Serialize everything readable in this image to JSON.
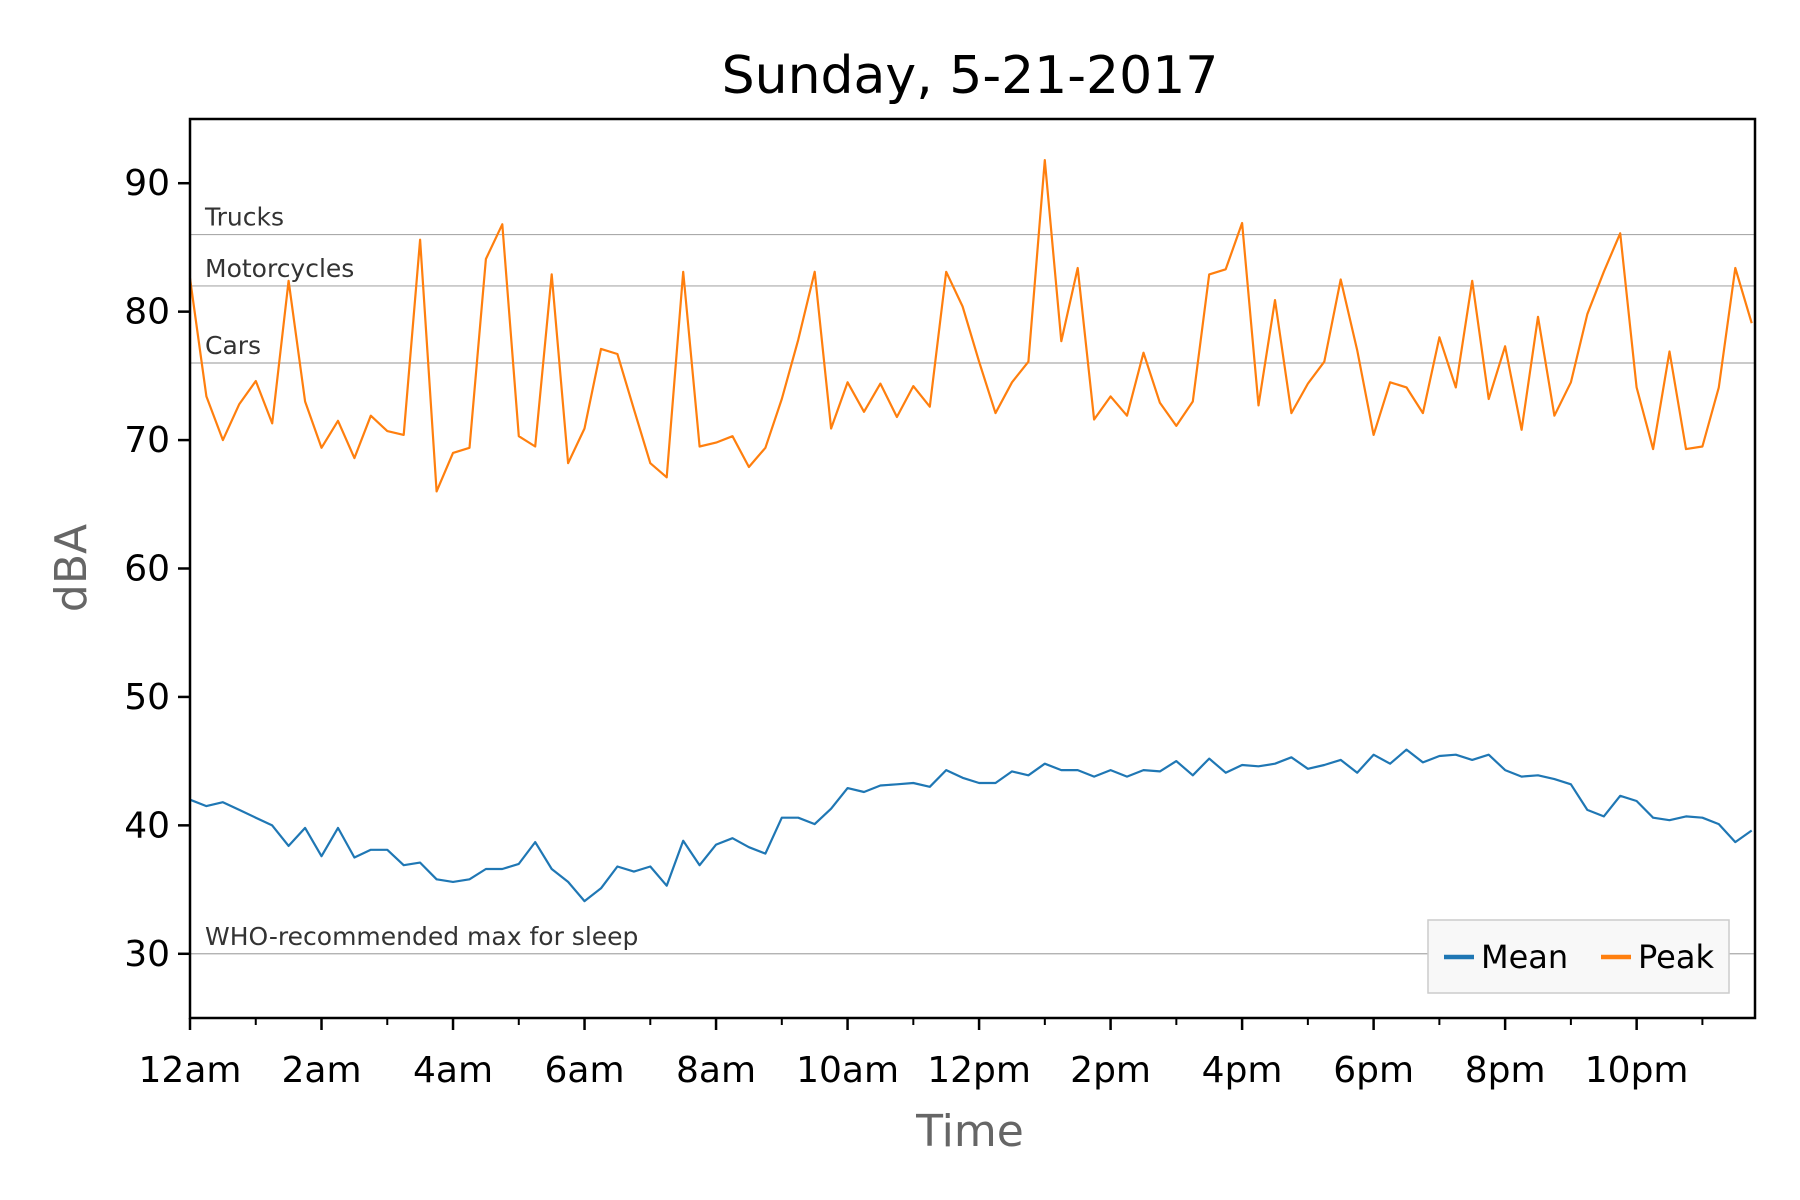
{
  "chart_data": {
    "type": "line",
    "title": "Sunday, 5-21-2017",
    "xlabel": "Time",
    "ylabel": "dBA",
    "xlim": [
      0,
      23.8
    ],
    "ylim": [
      25,
      95
    ],
    "x_ticks": [
      {
        "value": 0,
        "label": "12am"
      },
      {
        "value": 2,
        "label": "2am"
      },
      {
        "value": 4,
        "label": "4am"
      },
      {
        "value": 6,
        "label": "6am"
      },
      {
        "value": 8,
        "label": "8am"
      },
      {
        "value": 10,
        "label": "10am"
      },
      {
        "value": 12,
        "label": "12pm"
      },
      {
        "value": 14,
        "label": "2pm"
      },
      {
        "value": 16,
        "label": "4pm"
      },
      {
        "value": 18,
        "label": "6pm"
      },
      {
        "value": 20,
        "label": "8pm"
      },
      {
        "value": 22,
        "label": "10pm"
      }
    ],
    "y_ticks": [
      30,
      40,
      50,
      60,
      70,
      80,
      90
    ],
    "reference_lines": [
      {
        "value": 86,
        "label": "Trucks"
      },
      {
        "value": 82,
        "label": "Motorcycles"
      },
      {
        "value": 76,
        "label": "Cars"
      },
      {
        "value": 30,
        "label": "WHO-recommended max for sleep"
      }
    ],
    "legend_position": "lower right",
    "grid": false,
    "series": [
      {
        "name": "Mean",
        "color": "#1f77b4",
        "x": [
          0,
          0.25,
          0.5,
          0.75,
          1,
          1.25,
          1.5,
          1.75,
          2,
          2.25,
          2.5,
          2.75,
          3,
          3.25,
          3.5,
          3.75,
          4,
          4.25,
          4.5,
          4.75,
          5,
          5.25,
          5.5,
          5.75,
          6,
          6.25,
          6.5,
          6.75,
          7,
          7.25,
          7.5,
          7.75,
          8,
          8.25,
          8.5,
          8.75,
          9,
          9.25,
          9.5,
          9.75,
          10,
          10.25,
          10.5,
          10.75,
          11,
          11.25,
          11.5,
          11.75,
          12,
          12.25,
          12.5,
          12.75,
          13,
          13.25,
          13.5,
          13.75,
          14,
          14.25,
          14.5,
          14.75,
          15,
          15.25,
          15.5,
          15.75,
          16,
          16.25,
          16.5,
          16.75,
          17,
          17.25,
          17.5,
          17.75,
          18,
          18.25,
          18.5,
          18.75,
          19,
          19.25,
          19.5,
          19.75,
          20,
          20.25,
          20.5,
          20.75,
          21,
          21.25,
          21.5,
          21.75,
          22,
          22.25,
          22.5,
          22.75,
          23,
          23.25,
          23.5,
          23.75
        ],
        "y": [
          42,
          41.5,
          41.8,
          41.2,
          40.6,
          40,
          38.4,
          39.8,
          37.6,
          39.8,
          37.5,
          38.1,
          38.1,
          36.9,
          37.1,
          35.8,
          35.6,
          35.8,
          36.6,
          36.6,
          37,
          38.7,
          36.6,
          35.6,
          34.1,
          35.1,
          36.8,
          36.4,
          36.8,
          35.3,
          38.8,
          36.9,
          38.5,
          39,
          38.3,
          37.8,
          40.6,
          40.6,
          40.1,
          41.3,
          42.9,
          42.6,
          43.1,
          43.2,
          43.3,
          43,
          44.3,
          43.7,
          43.3,
          43.3,
          44.2,
          43.9,
          44.8,
          44.3,
          44.3,
          43.8,
          44.3,
          43.8,
          44.3,
          44.2,
          45,
          43.9,
          45.2,
          44.1,
          44.7,
          44.6,
          44.8,
          45.3,
          44.4,
          44.7,
          45.1,
          44.1,
          45.5,
          44.8,
          45.9,
          44.9,
          45.4,
          45.5,
          45.1,
          45.5,
          44.3,
          43.8,
          43.9,
          43.6,
          43.2,
          41.2,
          40.7,
          42.3,
          41.9,
          40.6,
          40.4,
          40.7,
          40.6,
          40.1,
          38.7,
          39.6
        ]
      },
      {
        "name": "Peak",
        "color": "#ff7f0e",
        "x": [
          0,
          0.25,
          0.5,
          0.75,
          1,
          1.25,
          1.5,
          1.75,
          2,
          2.25,
          2.5,
          2.75,
          3,
          3.25,
          3.5,
          3.75,
          4,
          4.25,
          4.5,
          4.75,
          5,
          5.25,
          5.5,
          5.75,
          6,
          6.25,
          6.5,
          6.75,
          7,
          7.25,
          7.5,
          7.75,
          8,
          8.25,
          8.5,
          8.75,
          9,
          9.25,
          9.5,
          9.75,
          10,
          10.25,
          10.5,
          10.75,
          11,
          11.25,
          11.5,
          11.75,
          12,
          12.25,
          12.5,
          12.75,
          13,
          13.25,
          13.5,
          13.75,
          14,
          14.25,
          14.5,
          14.75,
          15,
          15.25,
          15.5,
          15.75,
          16,
          16.25,
          16.5,
          16.75,
          17,
          17.25,
          17.5,
          17.75,
          18,
          18.25,
          18.5,
          18.75,
          19,
          19.25,
          19.5,
          19.75,
          20,
          20.25,
          20.5,
          20.75,
          21,
          21.25,
          21.5,
          21.75,
          22,
          22.25,
          22.5,
          22.75,
          23,
          23.25,
          23.5,
          23.75
        ],
        "y": [
          82.6,
          73.4,
          70,
          72.8,
          74.6,
          71.3,
          82.4,
          73,
          69.4,
          71.5,
          68.6,
          71.9,
          70.7,
          70.4,
          85.6,
          66,
          69,
          69.4,
          84.1,
          86.8,
          70.3,
          69.5,
          82.9,
          68.2,
          70.9,
          77.1,
          76.7,
          72.4,
          68.2,
          67.1,
          83.1,
          69.5,
          69.8,
          70.3,
          67.9,
          69.4,
          73.2,
          77.8,
          83.1,
          70.9,
          74.5,
          72.2,
          74.4,
          71.8,
          74.2,
          72.6,
          83.1,
          80.4,
          76.1,
          72.1,
          74.5,
          76.1,
          91.8,
          77.7,
          83.4,
          71.6,
          73.4,
          71.9,
          76.8,
          72.9,
          71.1,
          73,
          82.9,
          83.3,
          86.9,
          72.7,
          80.9,
          72.1,
          74.4,
          76.1,
          82.5,
          77,
          70.4,
          74.5,
          74.1,
          72.1,
          78,
          74.1,
          82.4,
          73.2,
          77.3,
          70.8,
          79.6,
          71.9,
          74.5,
          79.8,
          83.1,
          86.1,
          74.1,
          69.3,
          76.9,
          69.3,
          69.5,
          74.1,
          83.4,
          79.1
        ]
      }
    ]
  }
}
